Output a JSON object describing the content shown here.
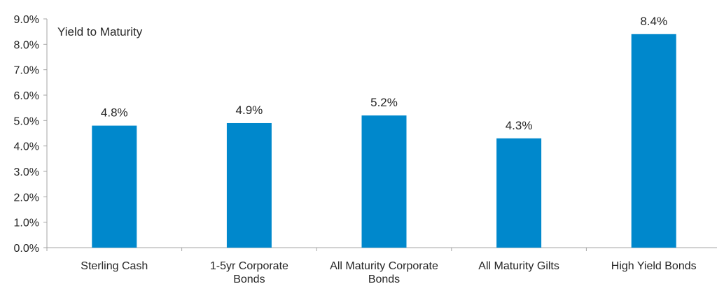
{
  "chart_data": {
    "type": "bar",
    "title": "Yield to Maturity",
    "categories": [
      [
        "Sterling Cash"
      ],
      [
        "1-5yr Corporate",
        "Bonds"
      ],
      [
        "All Maturity Corporate",
        "Bonds"
      ],
      [
        "All Maturity Gilts"
      ],
      [
        "High Yield Bonds"
      ]
    ],
    "values": [
      4.8,
      4.9,
      5.2,
      4.3,
      8.4
    ],
    "data_labels": [
      "4.8%",
      "4.9%",
      "5.2%",
      "4.3%",
      "8.4%"
    ],
    "ylim": [
      0,
      9
    ],
    "yticks": [
      "0.0%",
      "1.0%",
      "2.0%",
      "3.0%",
      "4.0%",
      "5.0%",
      "6.0%",
      "7.0%",
      "8.0%",
      "9.0%"
    ],
    "xlabel": "",
    "ylabel": "",
    "grid": false,
    "colors": {
      "bar": "#0088CC",
      "axis": "#A6A6A6",
      "text": "#262626"
    }
  }
}
